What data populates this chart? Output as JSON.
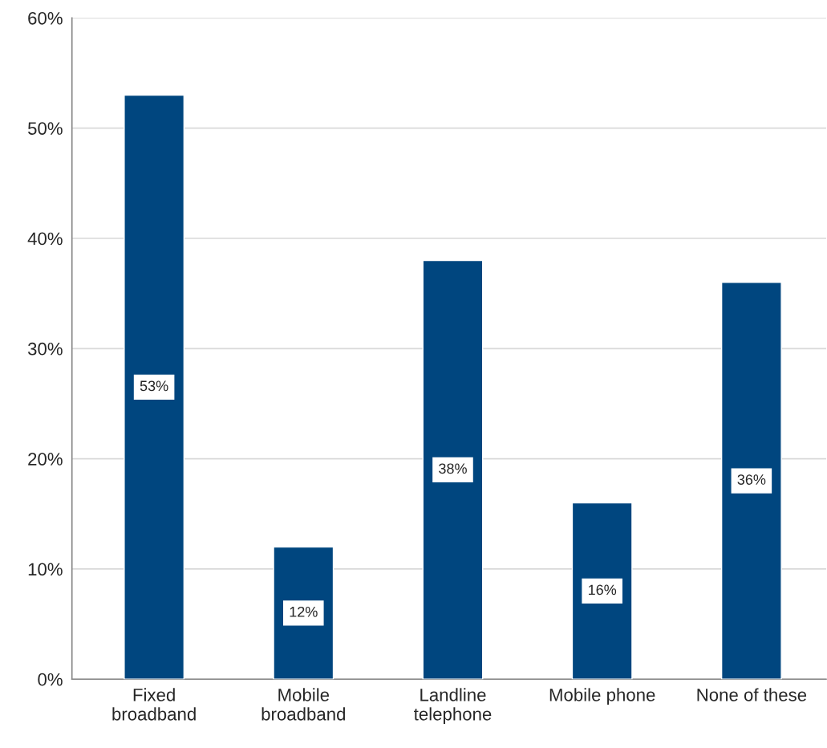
{
  "chart_data": {
    "type": "bar",
    "categories": [
      "Fixed\nbroadband",
      "Mobile\nbroadband",
      "Landline\ntelephone",
      "Mobile phone",
      "None of these"
    ],
    "values": [
      53,
      12,
      38,
      16,
      36
    ],
    "value_labels": [
      "53%",
      "12%",
      "38%",
      "16%",
      "36%"
    ],
    "color": "#00467f",
    "ylim": [
      0,
      60
    ],
    "yticks": [
      {
        "value": 0,
        "label": "0%"
      },
      {
        "value": 10,
        "label": "10%"
      },
      {
        "value": 20,
        "label": "20%"
      },
      {
        "value": 30,
        "label": "30%"
      },
      {
        "value": 40,
        "label": "40%"
      },
      {
        "value": 50,
        "label": "50%"
      },
      {
        "value": 60,
        "label": "60%"
      }
    ],
    "grid": "y",
    "legend": false
  }
}
